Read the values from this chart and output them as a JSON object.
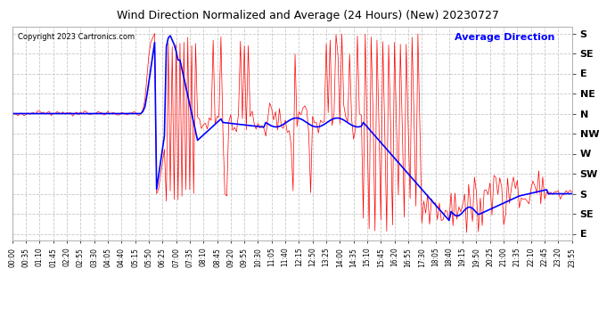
{
  "title": "Wind Direction Normalized and Average (24 Hours) (New) 20230727",
  "copyright": "Copyright 2023 Cartronics.com",
  "legend_label": "Average Direction",
  "background_color": "#ffffff",
  "plot_bg_color": "#ffffff",
  "grid_color": "#c8c8c8",
  "red_color": "#ff0000",
  "blue_color": "#0000ff",
  "title_color": "#000000",
  "copyright_color": "#000000",
  "legend_color": "#0000ff",
  "y_labels_right": [
    "S",
    "SE",
    "E",
    "NE",
    "N",
    "NW",
    "W",
    "SW",
    "S",
    "SE",
    "E"
  ],
  "y_ticks": [
    0,
    45,
    90,
    135,
    180,
    225,
    270,
    315,
    360,
    405,
    450
  ],
  "ylim_min": -15,
  "ylim_max": 465,
  "invert_y": true,
  "time_labels": [
    "00:00",
    "00:35",
    "01:10",
    "01:45",
    "02:20",
    "02:55",
    "03:30",
    "04:05",
    "04:40",
    "05:15",
    "05:50",
    "06:25",
    "07:00",
    "07:35",
    "08:10",
    "08:45",
    "09:20",
    "09:55",
    "10:30",
    "11:05",
    "11:40",
    "12:15",
    "12:50",
    "13:25",
    "14:00",
    "14:35",
    "15:10",
    "15:45",
    "16:20",
    "16:55",
    "17:30",
    "18:05",
    "18:40",
    "19:15",
    "19:50",
    "20:25",
    "21:00",
    "21:35",
    "22:10",
    "22:45",
    "23:20",
    "23:55"
  ]
}
